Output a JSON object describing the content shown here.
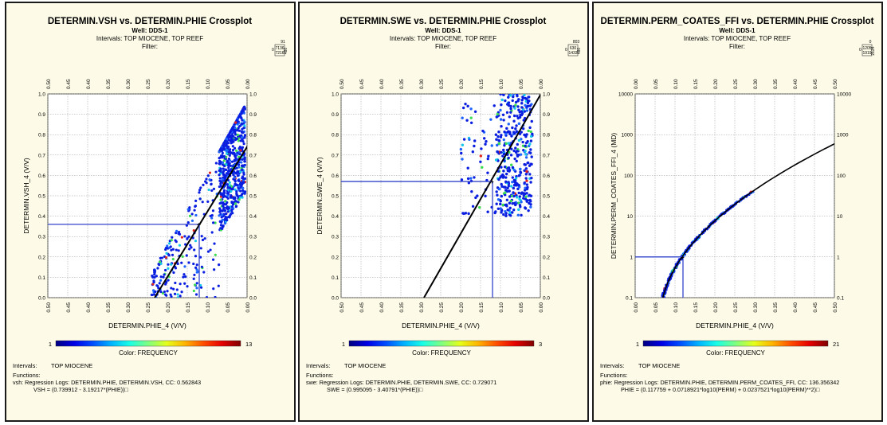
{
  "panels": [
    {
      "title": "DETERMIN.VSH vs. DETERMIN.PHIE Crossplot",
      "well": "Well: DDS-1",
      "intervals_line": "Intervals: TOP MIOCENE, TOP REEF",
      "filter": "Filter:",
      "stats": [
        "91",
        "7136",
        "7216",
        "480"
      ],
      "intervals_label": "Intervals:",
      "interval_value": "TOP MIOCENE",
      "functions_label": "Functions:",
      "func_line1": "vsh:  Regression Logs: DETERMIN.PHIE, DETERMIN.VSH, CC: 0.562843",
      "func_line2": "VSH = (0.739912 - 3.19217*(PHIE))□"
    },
    {
      "title": "DETERMIN.SWE vs. DETERMIN.PHIE Crossplot",
      "well": "Well: DDS-1",
      "intervals_line": "Intervals: TOP MIOCENE, TOP REEF",
      "filter": "Filter:",
      "stats": [
        "803",
        "630",
        "1433",
        "480"
      ],
      "intervals_label": "Intervals:",
      "interval_value": "TOP MIOCENE",
      "functions_label": "Functions:",
      "func_line1": "swe:  Regression Logs: DETERMIN.PHIE, DETERMIN.SWE, CC: 0.729071",
      "func_line2": "SWE = (0.995095 - 3.40791*(PHIE))□"
    },
    {
      "title": "DETERMIN.PERM_COATES_FFI vs. DETERMIN.PHIE Crossplot",
      "well": "Well: DDS-1",
      "intervals_line": "Intervals: TOP MIOCENE, TOP REEF",
      "filter": "Filter:",
      "stats": [
        "0",
        "1205",
        "1919",
        "2124"
      ],
      "intervals_label": "Intervals:",
      "interval_value": "TOP MIOCENE",
      "functions_label": "Functions:",
      "func_line1": "phie:  Regression Logs: DETERMIN.PHIE, DETERMIN.PERM_COATES_FFI, CC: 136.356342",
      "func_line2": "PHIE = (0.117759 + 0.0718921*log10(PERM) + 0.0237521*log10(PERM)**2)□"
    }
  ],
  "chart_data": [
    {
      "type": "scatter",
      "title": "DETERMIN.VSH vs. DETERMIN.PHIE Crossplot",
      "xlabel": "DETERMIN.PHIE_4 (V/V)",
      "ylabel": "DETERMIN.VSH_4 (V/V)",
      "xlim": [
        0.5,
        0.0
      ],
      "ylim": [
        0.0,
        1.0
      ],
      "x_ticks": [
        "0.50",
        "0.45",
        "0.40",
        "0.35",
        "0.30",
        "0.25",
        "0.20",
        "0.15",
        "0.10",
        "0.05",
        "0.00"
      ],
      "y_ticks": [
        "0.0",
        "0.1",
        "0.2",
        "0.3",
        "0.4",
        "0.5",
        "0.6",
        "0.7",
        "0.8",
        "0.9",
        "1.0"
      ],
      "y_log": false,
      "color_scale": {
        "label": "Color: FREQUENCY",
        "min": "1",
        "max": "13"
      },
      "regression": {
        "intercept": 0.739912,
        "slope": -3.19217
      },
      "crosshair": {
        "x": 0.12,
        "y": 0.36
      },
      "point_cloud": [
        {
          "x": [
            0.005,
            0.07
          ],
          "y": [
            0.02,
            0.95
          ],
          "n": 700,
          "upper_slope": -3.5,
          "upper_intercept": 0.96
        },
        {
          "x": [
            0.07,
            0.24
          ],
          "y": [
            0.0,
            0.7
          ],
          "n": 220,
          "upper_slope": -3.5,
          "upper_intercept": 0.96
        }
      ]
    },
    {
      "type": "scatter",
      "title": "DETERMIN.SWE vs. DETERMIN.PHIE Crossplot",
      "xlabel": "DETERMIN.PHIE_4 (V/V)",
      "ylabel": "DETERMIN.SWE_4 (V/V)",
      "xlim": [
        0.5,
        0.0
      ],
      "ylim": [
        0.0,
        1.0
      ],
      "x_ticks": [
        "0.50",
        "0.45",
        "0.40",
        "0.35",
        "0.30",
        "0.25",
        "0.20",
        "0.15",
        "0.10",
        "0.05",
        "0.00"
      ],
      "y_ticks": [
        "0.0",
        "0.1",
        "0.2",
        "0.3",
        "0.4",
        "0.5",
        "0.6",
        "0.7",
        "0.8",
        "0.9",
        "1.0"
      ],
      "y_log": false,
      "color_scale": {
        "label": "Color: FREQUENCY",
        "min": "1",
        "max": "3"
      },
      "regression": {
        "intercept": 0.995095,
        "slope": -3.40791
      },
      "crosshair": {
        "x": 0.12,
        "y": 0.57
      },
      "point_cloud": [
        {
          "x": [
            0.02,
            0.11
          ],
          "y": [
            0.4,
            1.0
          ],
          "n": 380
        },
        {
          "x": [
            0.11,
            0.2
          ],
          "y": [
            0.4,
            0.98
          ],
          "n": 60
        }
      ]
    },
    {
      "type": "scatter",
      "title": "DETERMIN.PERM_COATES_FFI vs. DETERMIN.PHIE Crossplot",
      "xlabel": "DETERMIN.PHIE_4 (V/V)",
      "ylabel": "DETERMIN.PERM_COATES_FFI_4 (MD)",
      "xlim": [
        0.0,
        0.5
      ],
      "ylim": [
        0.1,
        10000
      ],
      "x_ticks": [
        "0.00",
        "0.05",
        "0.10",
        "0.15",
        "0.20",
        "0.25",
        "0.30",
        "0.35",
        "0.40",
        "0.45",
        "0.50"
      ],
      "y_ticks": [
        "0.1",
        "1",
        "10",
        "100",
        "1000",
        "10000"
      ],
      "y_log": true,
      "color_scale": {
        "label": "Color: FREQUENCY",
        "min": "1",
        "max": "21"
      },
      "regression": {
        "a": 0.117759,
        "b": 0.0718921,
        "c": 0.0237521
      },
      "crosshair": {
        "x": 0.12,
        "y": 1
      },
      "point_cloud": [
        {
          "x": [
            0.04,
            0.3
          ],
          "n": 260
        }
      ]
    }
  ]
}
